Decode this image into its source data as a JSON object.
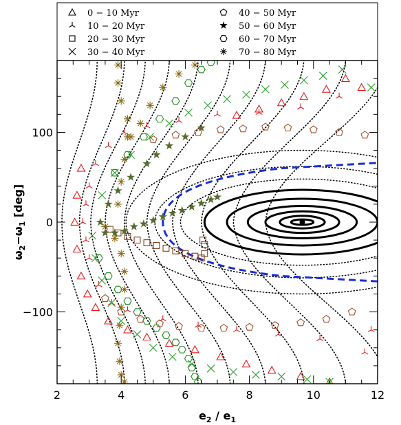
{
  "chart_data": {
    "type": "scatter",
    "title": "",
    "xlabel": {
      "base": "e",
      "sub1": "2",
      "mid": " / ",
      "base2": "e",
      "sub2": "1"
    },
    "ylabel": {
      "w1": "ω",
      "s1": "2",
      "op": "−",
      "w2": "ω",
      "s2": "1",
      "unit": " [deg]"
    },
    "xlim": [
      2,
      12
    ],
    "ylim": [
      -180,
      180
    ],
    "xticks": [
      2,
      4,
      6,
      8,
      10,
      12
    ],
    "yticks": [
      -100,
      0,
      100
    ],
    "grid": false,
    "legend_position": "top (boxed, two columns)",
    "series": [
      {
        "name": "0 − 10 Myr",
        "marker": "triangle",
        "color": "#e41a1c",
        "points": [
          [
            2.55,
            0
          ],
          [
            2.62,
            30
          ],
          [
            2.62,
            -30
          ],
          [
            2.75,
            60
          ],
          [
            2.75,
            -60
          ],
          [
            2.95,
            -80
          ],
          [
            3.2,
            -95
          ],
          [
            3.6,
            -110
          ],
          [
            4.2,
            -120
          ],
          [
            4.8,
            -128
          ],
          [
            5.5,
            -135
          ],
          [
            6.3,
            -142
          ],
          [
            7.1,
            -150
          ],
          [
            7.9,
            -158
          ],
          [
            8.7,
            -165
          ],
          [
            9.6,
            -172
          ],
          [
            10.5,
            -178
          ],
          [
            11.5,
            150
          ],
          [
            11.0,
            160
          ],
          [
            10.4,
            148
          ],
          [
            9.7,
            140
          ],
          [
            9.0,
            133
          ],
          [
            8.3,
            126
          ],
          [
            7.6,
            119
          ]
        ]
      },
      {
        "name": "10 − 20 Myr",
        "marker": "tripod",
        "color": "#e41a1c",
        "points": [
          [
            2.8,
            0
          ],
          [
            2.9,
            20
          ],
          [
            2.9,
            -20
          ],
          [
            3.0,
            40
          ],
          [
            3.0,
            -40
          ],
          [
            3.2,
            65
          ],
          [
            3.3,
            -70
          ],
          [
            3.6,
            85
          ],
          [
            3.7,
            -90
          ],
          [
            4.1,
            100
          ],
          [
            4.2,
            -98
          ],
          [
            4.8,
            107
          ],
          [
            5.3,
            -108
          ],
          [
            5.8,
            113
          ],
          [
            6.4,
            -115
          ],
          [
            7.0,
            120
          ],
          [
            7.6,
            -120
          ],
          [
            8.3,
            122
          ],
          [
            8.9,
            -125
          ],
          [
            9.6,
            128
          ],
          [
            10.2,
            -130
          ],
          [
            10.8,
            140
          ],
          [
            11.6,
            -145
          ],
          [
            11.8,
            -120
          ]
        ]
      },
      {
        "name": "20 − 30 Myr",
        "marker": "square",
        "color": "#7f3f1f",
        "points": [
          [
            3.65,
            -8
          ],
          [
            3.9,
            -12
          ],
          [
            4.2,
            -16
          ],
          [
            4.5,
            -20
          ],
          [
            4.8,
            -23
          ],
          [
            5.1,
            -26
          ],
          [
            5.4,
            -29
          ],
          [
            5.7,
            -32
          ],
          [
            6.0,
            -35
          ],
          [
            6.3,
            -38
          ],
          [
            6.5,
            -40
          ],
          [
            6.6,
            -35
          ],
          [
            6.6,
            -25
          ],
          [
            6.55,
            -20
          ]
        ]
      },
      {
        "name": "30 − 40 Myr",
        "marker": "cross",
        "color": "#2ca02c",
        "points": [
          [
            3.1,
            -15
          ],
          [
            3.2,
            -40
          ],
          [
            3.4,
            -65
          ],
          [
            3.7,
            -90
          ],
          [
            4.0,
            -110
          ],
          [
            4.5,
            -125
          ],
          [
            5.0,
            -140
          ],
          [
            5.6,
            -150
          ],
          [
            6.2,
            -158
          ],
          [
            6.8,
            -163
          ],
          [
            7.5,
            -167
          ],
          [
            8.2,
            -170
          ],
          [
            9.0,
            -172
          ],
          [
            9.8,
            -175
          ],
          [
            10.5,
            -178
          ],
          [
            3.4,
            30
          ],
          [
            3.8,
            55
          ],
          [
            4.3,
            75
          ],
          [
            4.9,
            95
          ],
          [
            5.5,
            110
          ],
          [
            6.1,
            122
          ],
          [
            6.7,
            130
          ],
          [
            7.3,
            137
          ],
          [
            7.9,
            142
          ],
          [
            8.5,
            148
          ],
          [
            9.1,
            153
          ],
          [
            9.7,
            158
          ],
          [
            10.3,
            163
          ],
          [
            10.9,
            170
          ],
          [
            11.8,
            150
          ]
        ]
      },
      {
        "name": "40 − 50 Myr",
        "marker": "pentagon",
        "color": "#a0522d",
        "points": [
          [
            3.5,
            -85
          ],
          [
            4.0,
            -100
          ],
          [
            4.6,
            -108
          ],
          [
            5.2,
            -113
          ],
          [
            5.8,
            -116
          ],
          [
            6.5,
            -118
          ],
          [
            7.2,
            -118
          ],
          [
            8.0,
            -117
          ],
          [
            8.8,
            -115
          ],
          [
            9.6,
            -112
          ],
          [
            10.4,
            -108
          ],
          [
            11.2,
            -100
          ],
          [
            5.0,
            92
          ],
          [
            5.7,
            97
          ],
          [
            6.4,
            100
          ],
          [
            7.1,
            103
          ],
          [
            7.8,
            104
          ],
          [
            8.5,
            106
          ],
          [
            9.2,
            105
          ],
          [
            10.0,
            103
          ],
          [
            10.8,
            100
          ],
          [
            11.6,
            97
          ]
        ]
      },
      {
        "name": "50 − 60 Myr",
        "marker": "star5",
        "color": "#556b2f",
        "points": [
          [
            3.35,
            0
          ],
          [
            3.5,
            -12
          ],
          [
            3.8,
            -12
          ],
          [
            4.1,
            -10
          ],
          [
            4.4,
            -5
          ],
          [
            4.7,
            -2
          ],
          [
            5.0,
            2
          ],
          [
            5.3,
            6
          ],
          [
            5.6,
            10
          ],
          [
            5.9,
            13
          ],
          [
            6.2,
            17
          ],
          [
            6.5,
            21
          ],
          [
            6.8,
            25
          ],
          [
            7.0,
            28
          ],
          [
            3.6,
            20
          ],
          [
            3.9,
            35
          ],
          [
            4.3,
            50
          ],
          [
            4.8,
            65
          ],
          [
            5.1,
            75
          ],
          [
            5.5,
            85
          ],
          [
            6.0,
            95
          ],
          [
            6.5,
            105
          ]
        ]
      },
      {
        "name": "60 − 70 Myr",
        "marker": "hexagon",
        "color": "#228b22",
        "points": [
          [
            3.3,
            -40
          ],
          [
            3.6,
            -60
          ],
          [
            3.9,
            -75
          ],
          [
            4.2,
            -88
          ],
          [
            4.5,
            -100
          ],
          [
            4.8,
            -110
          ],
          [
            5.1,
            -118
          ],
          [
            5.4,
            -126
          ],
          [
            5.7,
            -134
          ],
          [
            5.9,
            -142
          ],
          [
            6.1,
            -152
          ],
          [
            6.2,
            -162
          ],
          [
            6.3,
            -172
          ],
          [
            6.4,
            -178
          ],
          [
            3.8,
            55
          ],
          [
            4.2,
            75
          ],
          [
            4.7,
            95
          ],
          [
            5.2,
            115
          ],
          [
            5.7,
            135
          ],
          [
            6.1,
            155
          ],
          [
            6.5,
            170
          ],
          [
            6.8,
            178
          ]
        ]
      },
      {
        "name": "70 − 80 Myr",
        "marker": "asterisk",
        "color": "#8b6914",
        "points": [
          [
            3.5,
            -5
          ],
          [
            3.8,
            -18
          ],
          [
            4.0,
            -35
          ],
          [
            4.1,
            -55
          ],
          [
            4.1,
            -75
          ],
          [
            4.0,
            -95
          ],
          [
            3.95,
            -115
          ],
          [
            3.9,
            -135
          ],
          [
            3.95,
            -155
          ],
          [
            4.0,
            -170
          ],
          [
            4.1,
            -178
          ],
          [
            3.9,
            20
          ],
          [
            4.0,
            45
          ],
          [
            4.1,
            70
          ],
          [
            4.2,
            95
          ],
          [
            4.2,
            115
          ],
          [
            4.0,
            135
          ],
          [
            3.9,
            155
          ],
          [
            3.9,
            175
          ],
          [
            4.3,
            95
          ],
          [
            4.6,
            110
          ],
          [
            4.9,
            130
          ],
          [
            5.3,
            150
          ],
          [
            5.8,
            165
          ],
          [
            6.3,
            175
          ]
        ]
      }
    ]
  }
}
